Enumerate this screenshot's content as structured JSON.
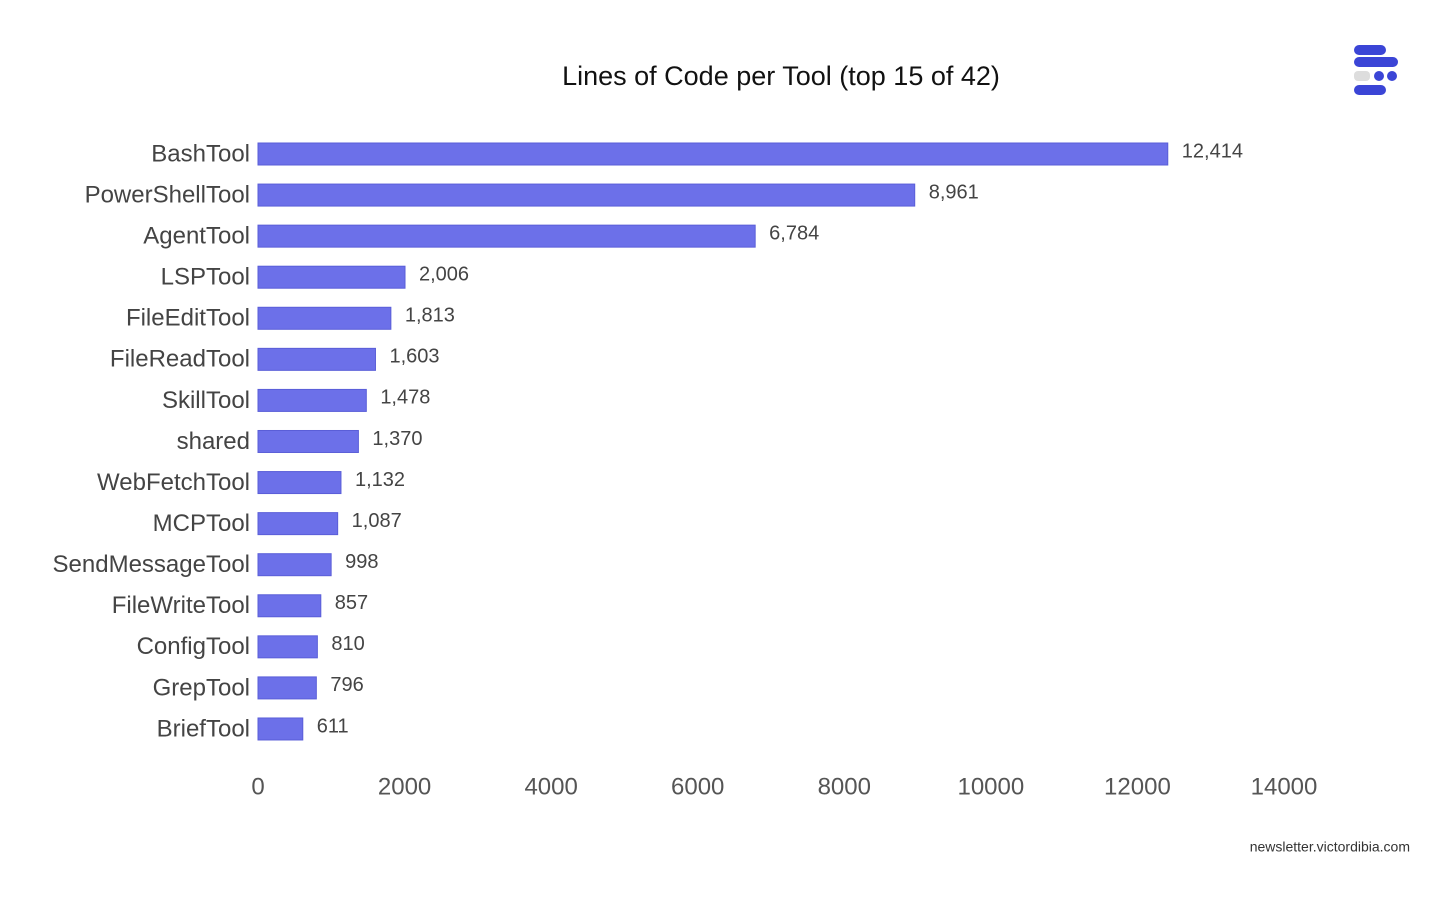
{
  "chart_data": {
    "type": "bar",
    "orientation": "horizontal",
    "title": "Lines of Code per Tool (top 15 of 42)",
    "categories": [
      "BashTool",
      "PowerShellTool",
      "AgentTool",
      "LSPTool",
      "FileEditTool",
      "FileReadTool",
      "SkillTool",
      "shared",
      "WebFetchTool",
      "MCPTool",
      "SendMessageTool",
      "FileWriteTool",
      "ConfigTool",
      "GrepTool",
      "BriefTool"
    ],
    "values": [
      12414,
      8961,
      6784,
      2006,
      1813,
      1603,
      1478,
      1370,
      1132,
      1087,
      998,
      857,
      810,
      796,
      611
    ],
    "value_labels": [
      "12,414",
      "8,961",
      "6,784",
      "2,006",
      "1,813",
      "1,603",
      "1,478",
      "1,370",
      "1,132",
      "1,087",
      "998",
      "857",
      "810",
      "796",
      "611"
    ],
    "color": "#6c70e9",
    "xlim": [
      0,
      14000
    ],
    "xticks": [
      0,
      2000,
      4000,
      6000,
      8000,
      10000,
      12000,
      14000
    ],
    "grid": false
  },
  "footer": "newsletter.victordibia.com"
}
